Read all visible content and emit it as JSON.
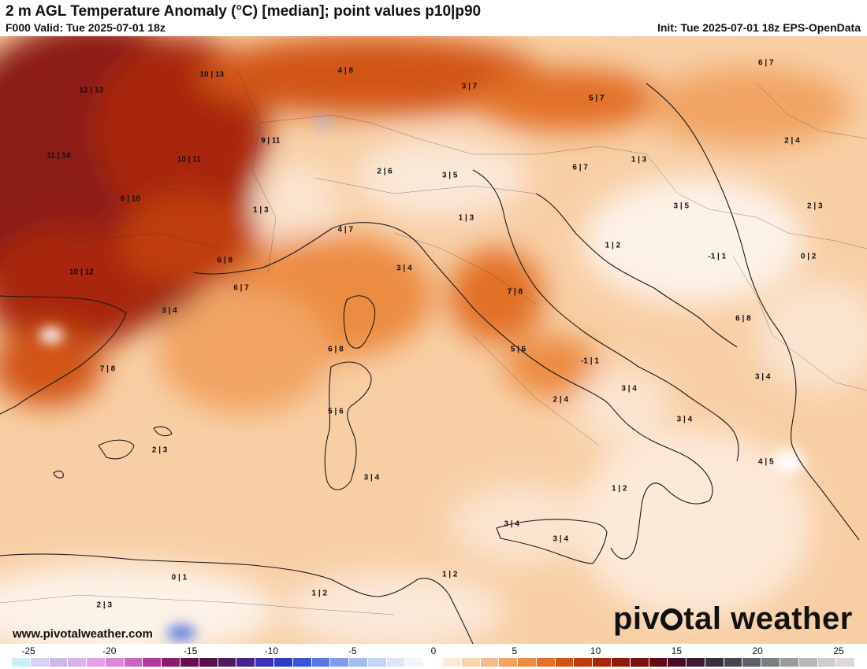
{
  "header": {
    "title": "2 m AGL Temperature Anomaly (°C) [median]; point values p10|p90",
    "valid": "F000 Valid: Tue 2025-07-01 18z",
    "init": "Init: Tue 2025-07-01 18z EPS-OpenData"
  },
  "footer": {
    "website": "www.pivotalweather.com",
    "brand_left": "piv",
    "brand_right": "tal weather"
  },
  "point_values": [
    {
      "label": "12 | 13",
      "lon": -2.2,
      "lat": 48.9
    },
    {
      "label": "10 | 13",
      "lon": 1.5,
      "lat": 49.3
    },
    {
      "label": "4 | 8",
      "lon": 5.6,
      "lat": 49.4
    },
    {
      "label": "3 | 7",
      "lon": 9.4,
      "lat": 49.0
    },
    {
      "label": "5 | 7",
      "lon": 13.3,
      "lat": 48.7
    },
    {
      "label": "6 | 7",
      "lon": 18.5,
      "lat": 49.6
    },
    {
      "label": "11 | 14",
      "lon": -3.2,
      "lat": 47.2
    },
    {
      "label": "10 | 11",
      "lon": 0.8,
      "lat": 47.1
    },
    {
      "label": "9 | 11",
      "lon": 3.3,
      "lat": 47.6
    },
    {
      "label": "2 | 6",
      "lon": 6.8,
      "lat": 46.8
    },
    {
      "label": "3 | 5",
      "lon": 8.8,
      "lat": 46.7
    },
    {
      "label": "6 | 7",
      "lon": 12.8,
      "lat": 46.9
    },
    {
      "label": "1 | 3",
      "lon": 14.6,
      "lat": 47.1
    },
    {
      "label": "2 | 4",
      "lon": 19.3,
      "lat": 47.6
    },
    {
      "label": "8 | 10",
      "lon": -1.0,
      "lat": 46.1
    },
    {
      "label": "1 | 3",
      "lon": 3.0,
      "lat": 45.8
    },
    {
      "label": "4 | 7",
      "lon": 5.6,
      "lat": 45.3
    },
    {
      "label": "1 | 3",
      "lon": 9.3,
      "lat": 45.6
    },
    {
      "label": "3 | 5",
      "lon": 15.9,
      "lat": 45.9
    },
    {
      "label": "2 | 3",
      "lon": 20.0,
      "lat": 45.9
    },
    {
      "label": "1 | 2",
      "lon": 13.8,
      "lat": 44.9
    },
    {
      "label": "-1 | 1",
      "lon": 17.0,
      "lat": 44.6
    },
    {
      "label": "0 | 2",
      "lon": 19.8,
      "lat": 44.6
    },
    {
      "label": "10 | 12",
      "lon": -2.5,
      "lat": 44.2
    },
    {
      "label": "6 | 8",
      "lon": 1.9,
      "lat": 44.5
    },
    {
      "label": "6 | 7",
      "lon": 2.4,
      "lat": 43.8
    },
    {
      "label": "3 | 4",
      "lon": 7.4,
      "lat": 44.3
    },
    {
      "label": "7 | 8",
      "lon": 10.8,
      "lat": 43.7
    },
    {
      "label": "3 | 4",
      "lon": 0.2,
      "lat": 43.2
    },
    {
      "label": "6 | 8",
      "lon": 17.8,
      "lat": 43.0
    },
    {
      "label": "6 | 8",
      "lon": 5.3,
      "lat": 42.2
    },
    {
      "label": "5 | 6",
      "lon": 10.9,
      "lat": 42.2
    },
    {
      "label": "-1 | 1",
      "lon": 13.1,
      "lat": 41.9
    },
    {
      "label": "7 | 8",
      "lon": -1.7,
      "lat": 41.7
    },
    {
      "label": "3 | 4",
      "lon": 18.4,
      "lat": 41.5
    },
    {
      "label": "3 | 4",
      "lon": 14.3,
      "lat": 41.2
    },
    {
      "label": "2 | 4",
      "lon": 12.2,
      "lat": 40.9
    },
    {
      "label": "5 | 6",
      "lon": 5.3,
      "lat": 40.6
    },
    {
      "label": "3 | 4",
      "lon": 16.0,
      "lat": 40.4
    },
    {
      "label": "2 | 3",
      "lon": -0.1,
      "lat": 39.6
    },
    {
      "label": "4 | 5",
      "lon": 18.5,
      "lat": 39.3
    },
    {
      "label": "3 | 4",
      "lon": 6.4,
      "lat": 38.9
    },
    {
      "label": "1 | 2",
      "lon": 14.0,
      "lat": 38.6
    },
    {
      "label": "3 | 4",
      "lon": 10.7,
      "lat": 37.7
    },
    {
      "label": "3 | 4",
      "lon": 12.2,
      "lat": 37.3
    },
    {
      "label": "0 | 1",
      "lon": 0.5,
      "lat": 36.3
    },
    {
      "label": "1 | 2",
      "lon": 8.8,
      "lat": 36.4
    },
    {
      "label": "1 | 2",
      "lon": 4.8,
      "lat": 35.9
    },
    {
      "label": "2 | 3",
      "lon": -1.8,
      "lat": 35.6
    }
  ],
  "colorbar": {
    "ticks": [
      "-25",
      "-20",
      "-15",
      "-10",
      "-5",
      "0",
      "5",
      "10",
      "15",
      "20",
      "25"
    ],
    "colors": [
      "#c8f0f8",
      "#d6d2f2",
      "#cdb8ee",
      "#dcb2ec",
      "#e6a0e6",
      "#dc86dc",
      "#cc64c4",
      "#b23c9c",
      "#8c1c70",
      "#6a0e50",
      "#5a1048",
      "#4c1c60",
      "#46248a",
      "#3c30b8",
      "#2e3cc8",
      "#3a54d8",
      "#5a7ae0",
      "#7e9ce8",
      "#a2bcee",
      "#c4d4f4",
      "#dce6f8",
      "#f2f6fc",
      "#ffffff",
      "#fde9d8",
      "#f9d2b0",
      "#f5bc8a",
      "#f1a464",
      "#ec8c42",
      "#e27026",
      "#d25416",
      "#c03c10",
      "#a8280c",
      "#901a0a",
      "#78100c",
      "#5e0c16",
      "#4a0c26",
      "#3c1830",
      "#3a2e3c",
      "#46464e",
      "#5e6266",
      "#7a8080",
      "#989c9a",
      "#b6b8b6",
      "#cecece",
      "#e0d8d8"
    ],
    "vmin": -25,
    "vmax": 25
  },
  "colors": {
    "sea_base": "#f8cfa5",
    "hot_core": "#8c1a12"
  }
}
